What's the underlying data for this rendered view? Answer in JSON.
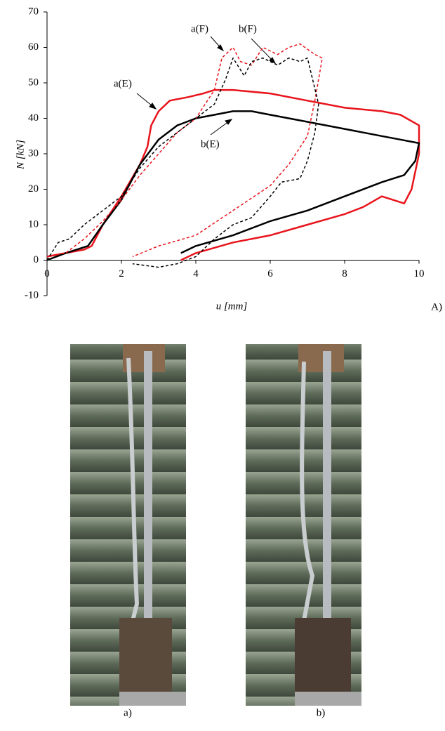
{
  "chart_data": {
    "type": "line",
    "xlabel": "u [mm]",
    "ylabel": "N [kN]",
    "panel_label": "A)",
    "xlim": [
      0,
      10
    ],
    "xticks": [
      0,
      2,
      4,
      6,
      8,
      10
    ],
    "ylim": [
      -10,
      70
    ],
    "yticks": [
      -10,
      0,
      10,
      20,
      30,
      40,
      50,
      60,
      70
    ],
    "annotations": [
      "a(F)",
      "b(F)",
      "a(E)",
      "b(E)"
    ],
    "series": [
      {
        "name": "a(E)",
        "color": "#e8141c",
        "dash": false,
        "x": [
          0,
          0.5,
          1,
          1.2,
          1.5,
          2,
          2.5,
          2.7,
          2.8,
          3,
          3.3,
          3.8,
          4.2,
          4.5,
          5,
          6,
          7,
          8,
          9,
          9.5,
          10,
          10,
          9.8,
          9.6,
          9,
          8.5,
          8,
          7,
          6,
          5,
          4,
          3.6
        ],
        "values": [
          1,
          2,
          3,
          4,
          10,
          18,
          27,
          32,
          38,
          42,
          45,
          46,
          47,
          48,
          48,
          47,
          45,
          43,
          42,
          41,
          38,
          30,
          20,
          16,
          18,
          15,
          13,
          10,
          7,
          5,
          2,
          0
        ]
      },
      {
        "name": "b(E)",
        "color": "#000000",
        "dash": false,
        "x": [
          0,
          0.5,
          1.1,
          1.5,
          2,
          2.5,
          3,
          3.5,
          4,
          4.5,
          5,
          5.5,
          6,
          7,
          8,
          9,
          9.5,
          10,
          9.9,
          9.6,
          9,
          8,
          7,
          6,
          5,
          4,
          3.6
        ],
        "values": [
          0,
          2,
          4,
          10,
          17,
          27,
          34,
          38,
          40,
          41,
          42,
          42,
          41,
          39,
          37,
          35,
          34,
          33,
          28,
          24,
          22,
          18,
          14,
          11,
          7,
          4,
          2
        ]
      },
      {
        "name": "a(F)",
        "color": "#e8141c",
        "dash": true,
        "x": [
          0,
          0.5,
          1,
          1.5,
          2,
          2.5,
          3,
          3.5,
          4,
          4.5,
          4.7,
          5,
          5.2,
          5.5,
          5.8,
          6.2,
          6.5,
          6.8,
          7.2,
          7.4,
          7.2,
          7,
          6.5,
          6,
          5,
          4,
          3,
          2.3
        ],
        "values": [
          1,
          2,
          6,
          11,
          17,
          24,
          30,
          36,
          40,
          48,
          57,
          60,
          56,
          55,
          60,
          58,
          60,
          61,
          58,
          57,
          45,
          35,
          27,
          21,
          14,
          7,
          4,
          1
        ]
      },
      {
        "name": "b(F)",
        "color": "#000000",
        "dash": true,
        "x": [
          0,
          0.3,
          0.6,
          1,
          1.5,
          2,
          2.5,
          3,
          3.5,
          4,
          4.5,
          4.8,
          5,
          5.3,
          5.5,
          5.8,
          6.2,
          6.5,
          6.8,
          7,
          7.3,
          7.2,
          7,
          6.8,
          6.3,
          6,
          5.5,
          5,
          4.5,
          4,
          3.5,
          3,
          2.3
        ],
        "values": [
          0,
          5,
          6,
          10,
          14,
          18,
          26,
          32,
          36,
          40,
          44,
          51,
          57,
          52,
          56,
          57,
          55,
          57,
          56,
          57,
          44,
          36,
          28,
          23,
          22,
          18,
          12,
          10,
          6,
          1,
          -1,
          -2,
          -1
        ]
      }
    ]
  },
  "photo_captions": [
    "a)",
    "b)"
  ]
}
